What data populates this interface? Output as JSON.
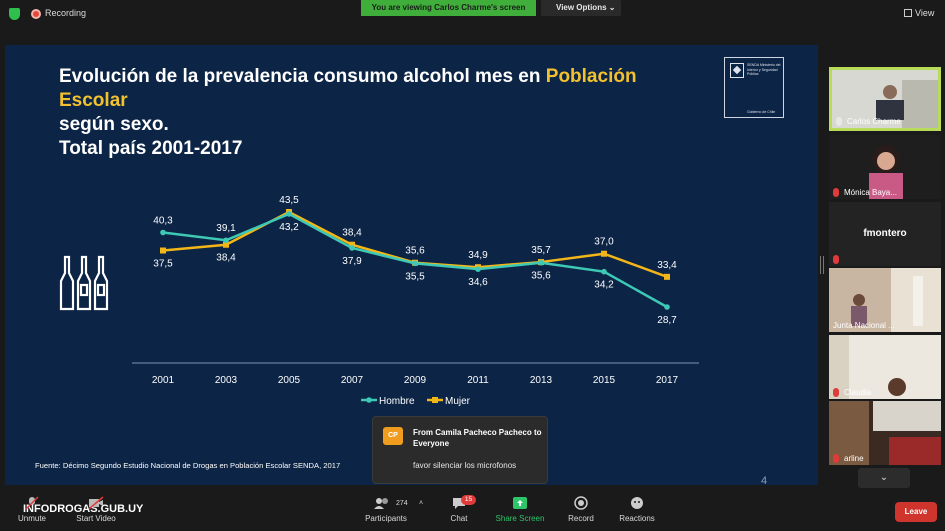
{
  "topbar": {
    "recording_label": "Recording",
    "viewing_banner": "You are viewing Carlos Charme's screen",
    "view_options_label": "View Options",
    "view_label": "View"
  },
  "slide": {
    "title_part1": "Evolución de la prevalencia consumo alcohol mes en ",
    "title_highlight": "Población Escolar",
    "title_line3": "según sexo.",
    "title_line4": "Total país 2001-2017",
    "highlight_color": "#f2c12e",
    "logo_text": "SENDA Ministerio del Interior y Seguridad Pública",
    "logo_footer": "Gobierno de Chile",
    "source": "Fuente: Décimo Segundo Estudio Nacional de Drogas en Población Escolar SENDA, 2017",
    "page_number": "4"
  },
  "chart_data": {
    "type": "line",
    "x": [
      "2001",
      "2003",
      "2005",
      "2007",
      "2009",
      "2011",
      "2013",
      "2015",
      "2017"
    ],
    "series": [
      {
        "name": "Hombre",
        "color": "#3ec9b6",
        "values": [
          40.3,
          39.1,
          43.2,
          37.9,
          35.5,
          34.6,
          35.6,
          34.2,
          28.7
        ],
        "labels": [
          "40,3",
          "39,1",
          "43,2",
          "37,9",
          "35,5",
          "34,6",
          "35,6",
          "34,2",
          "28,7"
        ]
      },
      {
        "name": "Mujer",
        "color": "#f2b619",
        "values": [
          37.5,
          38.4,
          43.5,
          38.4,
          35.6,
          34.9,
          35.7,
          37.0,
          33.4
        ],
        "labels": [
          "37,5",
          "38,4",
          "43,5",
          "38,4",
          "35,6",
          "34,9",
          "35,7",
          "37,0",
          "33,4"
        ]
      }
    ],
    "legend_position": "bottom-center",
    "grid": false
  },
  "participants": [
    {
      "name": "Carlos Charme",
      "active": true
    },
    {
      "name": "Mónica Baya...",
      "active": false
    },
    {
      "name": "fmontero",
      "active": false
    },
    {
      "name": "Junta Nacional ...",
      "active": false
    },
    {
      "name": "Claudia",
      "active": false
    },
    {
      "name": "arline",
      "active": false
    }
  ],
  "chat_popup": {
    "avatar": "CP",
    "from": "From Camila Pacheco Pacheco to Everyone",
    "message": "favor silenciar los microfonos"
  },
  "toolbar": {
    "unmute": "Unmute",
    "start_video": "Start Video",
    "participants_label": "Participants",
    "participants_count": "274",
    "chat_label": "Chat",
    "chat_badge": "15",
    "share_screen": "Share Screen",
    "record": "Record",
    "reactions": "Reactions",
    "leave": "Leave",
    "watermark": "INFODROGAS.GUB.UY"
  }
}
